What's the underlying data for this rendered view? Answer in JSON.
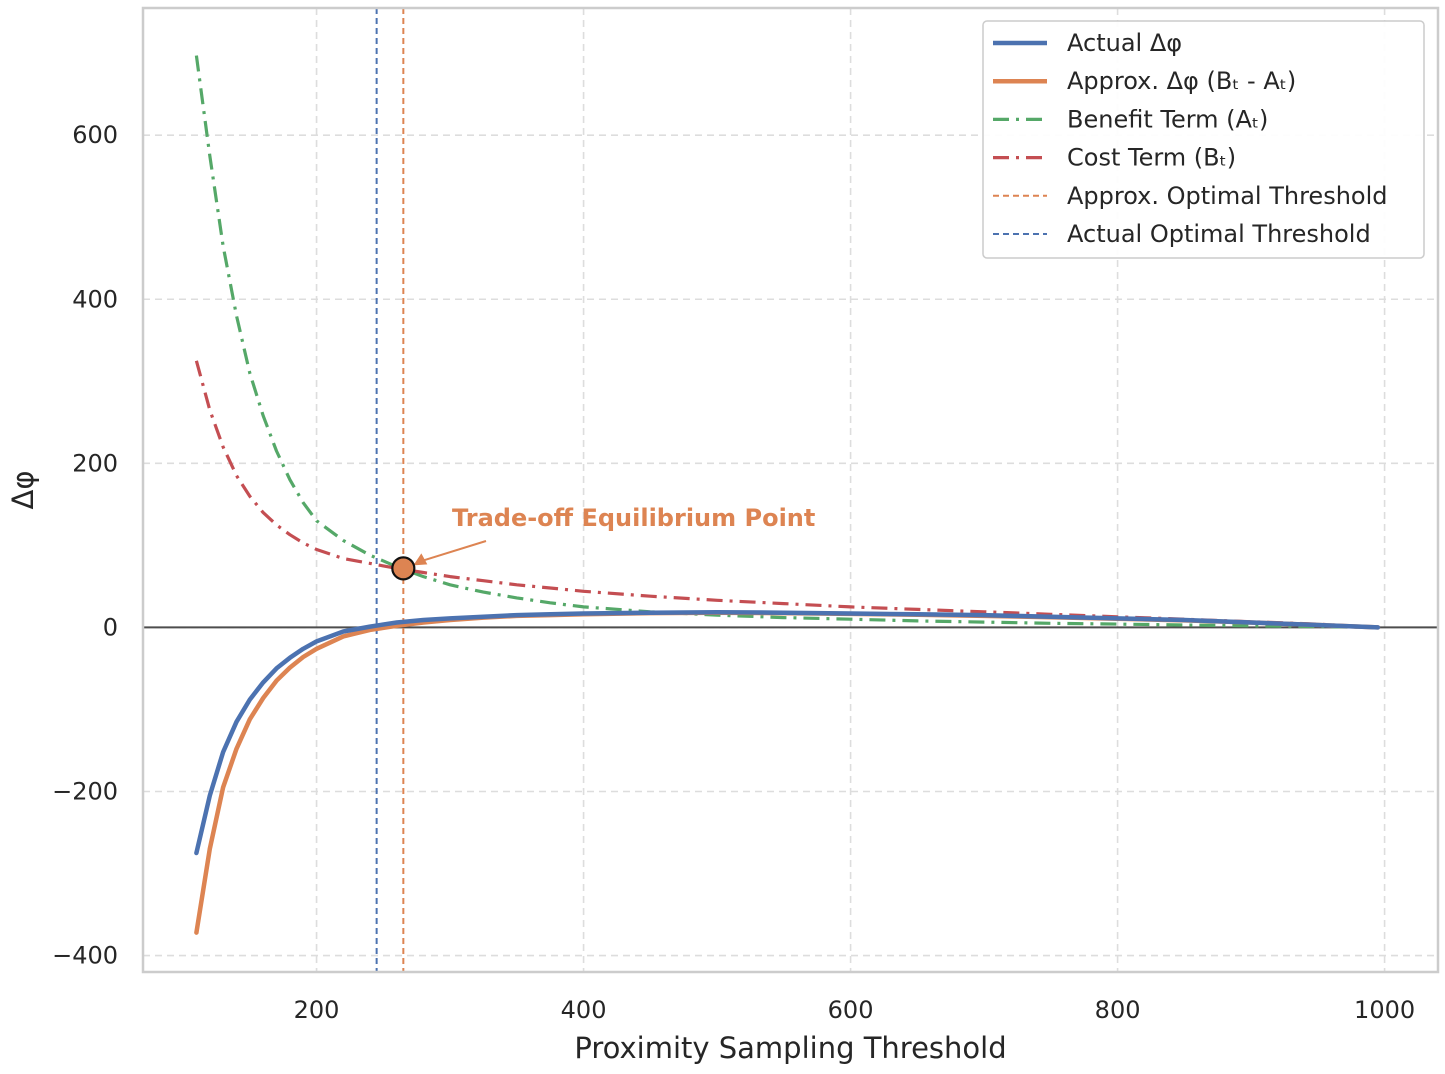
{
  "chart_data": {
    "type": "line",
    "title": "",
    "xlabel": "Proximity Sampling Threshold",
    "ylabel": "Δφ",
    "xlim": [
      70,
      1040
    ],
    "ylim": [
      -420,
      755
    ],
    "xticks": [
      200,
      400,
      600,
      800,
      1000
    ],
    "yticks": [
      -400,
      -200,
      0,
      200,
      400,
      600
    ],
    "xtick_labels": [
      "200",
      "400",
      "600",
      "800",
      "1000"
    ],
    "ytick_labels": [
      "−400",
      "−200",
      "0",
      "200",
      "400",
      "600"
    ],
    "grid": true,
    "legend_position": "top-right",
    "x": [
      110,
      120,
      130,
      140,
      150,
      160,
      170,
      180,
      190,
      200,
      220,
      240,
      260,
      280,
      300,
      325,
      350,
      375,
      400,
      450,
      500,
      550,
      600,
      650,
      700,
      750,
      800,
      850,
      900,
      950,
      995
    ],
    "series": [
      {
        "name": "Actual Δφ",
        "color": "#4c72b0",
        "style": "solid",
        "values": [
          -275,
          -205,
          -152,
          -115,
          -88,
          -67,
          -50,
          -37,
          -26,
          -17,
          -5,
          1,
          6,
          9,
          11,
          13,
          15,
          16,
          17,
          18,
          18.5,
          18,
          17,
          16,
          15,
          13,
          11,
          9,
          6,
          3,
          0
        ]
      },
      {
        "name": "Approx. Δφ (Bₜ - Aₜ)",
        "color": "#dd8452",
        "style": "solid",
        "values": [
          -372,
          -270,
          -195,
          -148,
          -112,
          -86,
          -65,
          -49,
          -36,
          -26,
          -11,
          -3,
          2,
          6,
          9,
          12,
          14,
          15,
          16,
          17.5,
          18,
          17.5,
          16.5,
          15.5,
          14,
          12.5,
          10.5,
          8.5,
          6,
          3,
          0
        ]
      },
      {
        "name": "Benefit Term (Aₜ)",
        "color": "#55a868",
        "style": "dashdot",
        "values": [
          697,
          575,
          465,
          380,
          310,
          258,
          215,
          180,
          152,
          130,
          106,
          88,
          74,
          62,
          52,
          43,
          36,
          30,
          25,
          19,
          15,
          12,
          10,
          8,
          6.5,
          5,
          4,
          3,
          2,
          1,
          0
        ]
      },
      {
        "name": "Cost Term (Bₜ)",
        "color": "#c44e52",
        "style": "dashdot",
        "values": [
          325,
          265,
          220,
          185,
          160,
          140,
          125,
          113,
          103,
          95,
          84,
          78,
          72,
          67,
          62,
          57,
          52,
          48,
          44,
          38,
          33,
          29,
          25,
          22,
          19,
          16,
          13,
          10,
          7,
          4,
          0
        ]
      }
    ],
    "vlines": [
      {
        "name": "Approx. Optimal Threshold",
        "x": 265,
        "color": "#dd8452"
      },
      {
        "name": "Actual Optimal Threshold",
        "x": 245,
        "color": "#4c72b0"
      }
    ],
    "hline": {
      "y": 0,
      "color": "#4d4d4d"
    },
    "annotation": {
      "text": "Trade-off Equilibrium Point",
      "point": [
        265,
        72
      ],
      "color": "#dd8452"
    }
  }
}
